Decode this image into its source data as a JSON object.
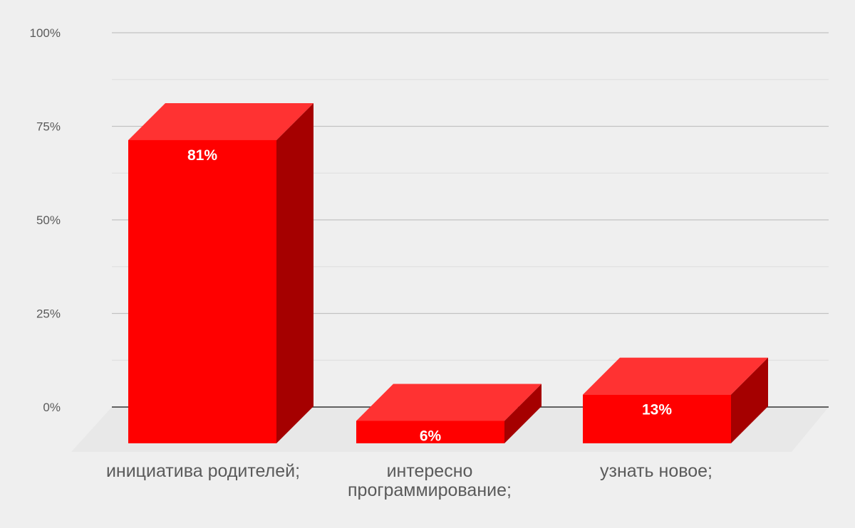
{
  "chart_data": {
    "type": "bar",
    "style": "3d",
    "categories": [
      [
        "инициатива родителей;"
      ],
      [
        "интересно",
        "программирование;"
      ],
      [
        "узнать новое;"
      ]
    ],
    "values": [
      81,
      6,
      13
    ],
    "data_labels": [
      "81%",
      "6%",
      "13%"
    ],
    "ylim": [
      0,
      100
    ],
    "yticks": [
      {
        "value": 0,
        "label": "0%"
      },
      {
        "value": 25,
        "label": "25%"
      },
      {
        "value": 50,
        "label": "50%"
      },
      {
        "value": 75,
        "label": "75%"
      },
      {
        "value": 100,
        "label": "100%"
      }
    ],
    "grid": true,
    "colors": {
      "front": "#ff0000",
      "top": "#ff3232",
      "side": "#a50000",
      "grid": "#c2c2c2",
      "minor_grid": "#dedede",
      "floor": "#e8e8e8",
      "axis": "#333333"
    }
  }
}
